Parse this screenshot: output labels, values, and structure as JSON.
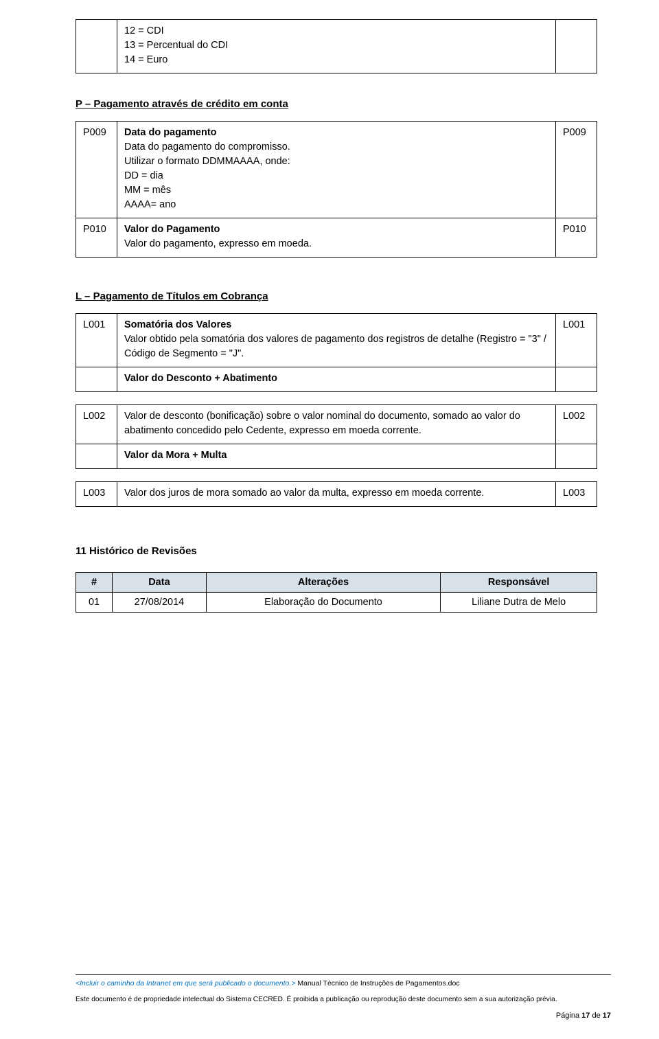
{
  "topbox": {
    "lines": [
      "12 = CDI",
      "13 = Percentual do CDI",
      "14 = Euro"
    ]
  },
  "section_p": {
    "heading": "P – Pagamento através de crédito em conta",
    "rows": [
      {
        "left_code": "P009",
        "right_code": "P009",
        "title": "Data do pagamento",
        "lines": [
          "Data do pagamento do compromisso.",
          "Utilizar o formato DDMMAAAA, onde:",
          "DD = dia",
          "MM = mês",
          "AAAA= ano"
        ]
      },
      {
        "left_code": "P010",
        "right_code": "P010",
        "title": "Valor do Pagamento",
        "lines": [
          "Valor do pagamento, expresso em moeda."
        ]
      }
    ]
  },
  "section_l": {
    "heading": "L – Pagamento de Títulos em Cobrança",
    "rows": [
      {
        "left_code": "L001",
        "right_code": "L001",
        "title": "Somatória dos Valores",
        "lines": [
          "Valor obtido pela somatória dos valores de pagamento dos registros de detalhe (Registro = \"3\" / Código de Segmento = \"J\"."
        ],
        "trailing_title": "Valor do Desconto + Abatimento"
      },
      {
        "left_code": "L002",
        "right_code": "L002",
        "lines": [
          "Valor de desconto (bonificação) sobre o valor nominal do documento, somado ao valor do abatimento concedido pelo Cedente, expresso em moeda corrente."
        ],
        "trailing_title": "Valor da Mora + Multa"
      },
      {
        "left_code": "L003",
        "right_code": "L003",
        "lines": [
          "Valor dos juros de mora somado ao valor da multa, expresso em moeda corrente."
        ]
      }
    ]
  },
  "revisions": {
    "heading": "11   Histórico de Revisões",
    "columns": [
      "#",
      "Data",
      "Alterações",
      "Responsável"
    ],
    "rows": [
      [
        "01",
        "27/08/2014",
        "Elaboração do Documento",
        "Liliane Dutra de Melo"
      ]
    ],
    "col_widths": [
      "7%",
      "18%",
      "45%",
      "30%"
    ]
  },
  "footer": {
    "blue": "<Incluir o caminho da Intranet em que será publicado o documento.>",
    "after_blue": " Manual Técnico de Instruções de Pagamentos.doc",
    "line2": "Este documento é de propriedade intelectual do Sistema CECRED. É proibida a publicação ou reprodução deste documento sem a sua autorização prévia.",
    "page_label": "Página ",
    "page_current": "17",
    "page_sep": " de ",
    "page_total": "17"
  }
}
